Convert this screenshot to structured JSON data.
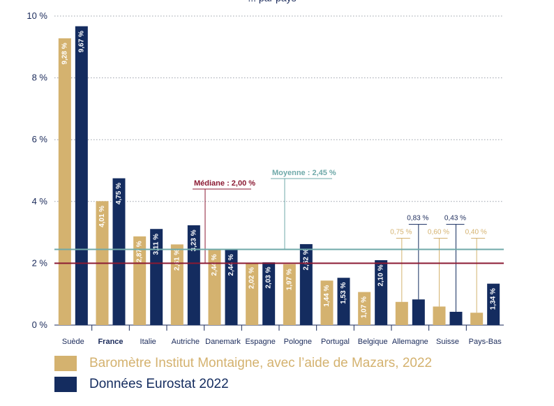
{
  "title_partial": "... par pays",
  "chart_data": {
    "type": "bar",
    "ylim": [
      0,
      10
    ],
    "yticks": [
      0,
      2,
      4,
      6,
      8,
      10
    ],
    "ytick_labels": [
      "0 %",
      "2 %",
      "4 %",
      "6 %",
      "8 %",
      "10 %"
    ],
    "categories": [
      "Suède",
      "France",
      "Italie",
      "Autriche",
      "Danemark",
      "Espagne",
      "Pologne",
      "Portugal",
      "Belgique",
      "Allemagne",
      "Suisse",
      "Pays-Bas"
    ],
    "highlight_category": "France",
    "series": [
      {
        "name": "Baromètre Institut Montaigne, avec l’aide de Mazars, 2022",
        "color": "#D4B26F",
        "values": [
          9.28,
          4.01,
          2.87,
          2.61,
          2.44,
          2.02,
          1.97,
          1.44,
          1.07,
          0.75,
          0.6,
          0.4
        ],
        "labels": [
          "9,28 %",
          "4,01 %",
          "2,87 %",
          "2,61 %",
          "2,44 %",
          "2,02 %",
          "1,97 %",
          "1,44 %",
          "1,07 %",
          "0,75 %",
          "0,60 %",
          "0,40 %"
        ]
      },
      {
        "name": "Données Eurostat 2022",
        "color": "#142C5F",
        "values": [
          9.67,
          4.75,
          3.11,
          3.23,
          2.44,
          2.03,
          2.62,
          1.53,
          2.1,
          0.83,
          0.43,
          1.34
        ],
        "labels": [
          "9,67 %",
          "4,75 %",
          "3,11 %",
          "3,23 %",
          "2,44 %",
          "2,03 %",
          "2,62 %",
          "1,53 %",
          "2,10 %",
          "0,83 %",
          "0,43 %",
          "1,34 %"
        ]
      }
    ],
    "reference_lines": [
      {
        "name": "Médiane",
        "label": "Médiane : 2,00 %",
        "value": 2.0,
        "color": "#8B1A33"
      },
      {
        "name": "Moyenne",
        "label": "Moyenne : 2,45 %",
        "value": 2.45,
        "color": "#6FA9A9"
      }
    ]
  }
}
